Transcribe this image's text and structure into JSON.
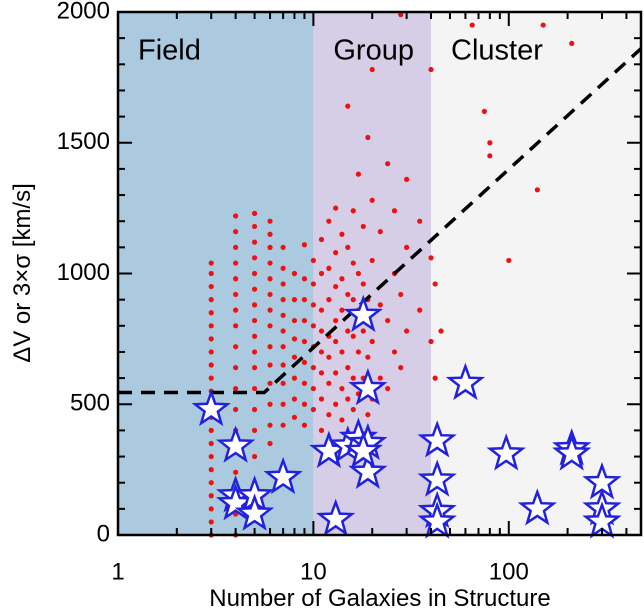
{
  "chart_data": {
    "type": "scatter",
    "xlabel": "Number of Galaxies in Structure",
    "ylabel": "ΔV or 3×σ [km/s]",
    "xlim": [
      1,
      475
    ],
    "ylim": [
      0,
      2000
    ],
    "xlog": true,
    "xticks": [
      1,
      10,
      100
    ],
    "xminorticks": [
      2,
      3,
      4,
      5,
      6,
      7,
      8,
      9,
      20,
      30,
      40,
      50,
      60,
      70,
      80,
      90,
      200,
      300,
      400
    ],
    "yticks": [
      0,
      500,
      1000,
      1500,
      2000
    ],
    "yminorticks": [
      100,
      200,
      300,
      400,
      600,
      700,
      800,
      900,
      1100,
      1200,
      1300,
      1400,
      1600,
      1700,
      1800,
      1900
    ],
    "regions": [
      {
        "label": "Field",
        "x": [
          1,
          10
        ],
        "color": "#abc9df"
      },
      {
        "label": "Group",
        "x": [
          10,
          40
        ],
        "color": "#d6cde6"
      },
      {
        "label": "Cluster",
        "x": [
          40,
          475
        ],
        "color": "#f4f4f4"
      }
    ],
    "dot_color": "#ee1111",
    "dots": [
      {
        "x": 3,
        "y": [
          0,
          50,
          100,
          150,
          200,
          250,
          300,
          350,
          400,
          450,
          500,
          550,
          600,
          650,
          700,
          750,
          800,
          850,
          900,
          950,
          1000,
          1040
        ]
      },
      {
        "x": 4,
        "y": [
          0,
          80,
          160,
          240,
          320,
          400,
          480,
          560,
          640,
          720,
          800,
          860,
          920,
          980,
          1040,
          1100,
          1160,
          1220
        ]
      },
      {
        "x": 5,
        "y": [
          100,
          200,
          300,
          400,
          480,
          560,
          640,
          700,
          760,
          820,
          880,
          940,
          1000,
          1060,
          1120,
          1180,
          1230
        ]
      },
      {
        "x": 6,
        "y": [
          350,
          420,
          500,
          580,
          650,
          720,
          800,
          860,
          920,
          980,
          1040,
          1100,
          1150,
          1200
        ]
      },
      {
        "x": 7,
        "y": [
          420,
          500,
          580,
          650,
          720,
          780,
          840,
          900,
          960,
          1020,
          1100
        ]
      },
      {
        "x": 8,
        "y": [
          450,
          520,
          600,
          680,
          750,
          820,
          900,
          1000
        ]
      },
      {
        "x": 9,
        "y": [
          420,
          500,
          580,
          660,
          740,
          820,
          900,
          980,
          1110
        ]
      },
      {
        "x": 10,
        "y": [
          480,
          560,
          640,
          720,
          800,
          880,
          960,
          1050
        ]
      },
      {
        "x": 11,
        "y": [
          400,
          520,
          620,
          700,
          780,
          860,
          1000,
          1130
        ]
      },
      {
        "x": 12,
        "y": [
          460,
          580,
          680,
          760,
          900,
          1020,
          1200
        ]
      },
      {
        "x": 13,
        "y": [
          500,
          620,
          740,
          820,
          950,
          1080,
          1250
        ]
      },
      {
        "x": 14,
        "y": [
          440,
          560,
          700,
          860,
          980,
          1150
        ]
      },
      {
        "x": 15,
        "y": [
          520,
          640,
          780,
          920,
          1100,
          1640
        ]
      },
      {
        "x": 16,
        "y": [
          480,
          600,
          760,
          900,
          1040,
          1240
        ]
      },
      {
        "x": 17,
        "y": [
          540,
          700,
          860,
          1000,
          1380
        ]
      },
      {
        "x": 18,
        "y": [
          600,
          780,
          960,
          1180
        ]
      },
      {
        "x": 19,
        "y": [
          460,
          680,
          900,
          1520
        ]
      },
      {
        "x": 20,
        "y": [
          520,
          740,
          1050,
          1280,
          1780
        ]
      },
      {
        "x": 22,
        "y": [
          600,
          880,
          1160
        ]
      },
      {
        "x": 24,
        "y": [
          560,
          820,
          1420
        ]
      },
      {
        "x": 26,
        "y": [
          700,
          1000,
          1240
        ]
      },
      {
        "x": 28,
        "y": [
          640,
          920,
          1990
        ]
      },
      {
        "x": 30,
        "y": [
          780,
          1100,
          1360
        ]
      },
      {
        "x": 35,
        "y": [
          860,
          1200
        ]
      },
      {
        "x": 40,
        "y": [
          740,
          1060,
          1780
        ]
      },
      {
        "x": 42,
        "y": [
          600,
          960
        ]
      },
      {
        "x": 45,
        "y": [
          780
        ]
      },
      {
        "x": 65,
        "y": [
          1950
        ]
      },
      {
        "x": 75,
        "y": [
          1620
        ]
      },
      {
        "x": 80,
        "y": [
          1450,
          1500
        ]
      },
      {
        "x": 100,
        "y": [
          1050
        ]
      },
      {
        "x": 140,
        "y": [
          1320
        ]
      },
      {
        "x": 150,
        "y": [
          1950
        ]
      },
      {
        "x": 210,
        "y": [
          1880
        ]
      }
    ],
    "stars": {
      "color": "#2222dd",
      "fill": "#ffffff",
      "x": [
        3,
        4,
        4,
        4,
        5,
        5,
        7,
        12,
        13,
        15,
        17,
        18,
        19,
        19,
        19,
        18,
        43,
        43,
        43,
        43,
        60,
        97,
        140,
        210,
        210,
        300,
        300,
        300
      ],
      "y": [
        480,
        340,
        150,
        120,
        150,
        80,
        220,
        320,
        60,
        340,
        370,
        840,
        560,
        350,
        240,
        320,
        360,
        210,
        90,
        50,
        580,
        310,
        100,
        330,
        310,
        200,
        100,
        50
      ]
    },
    "reference_line": {
      "color": "#000000",
      "x": [
        1,
        5.6,
        475
      ],
      "y": [
        545,
        545,
        1860
      ]
    }
  }
}
